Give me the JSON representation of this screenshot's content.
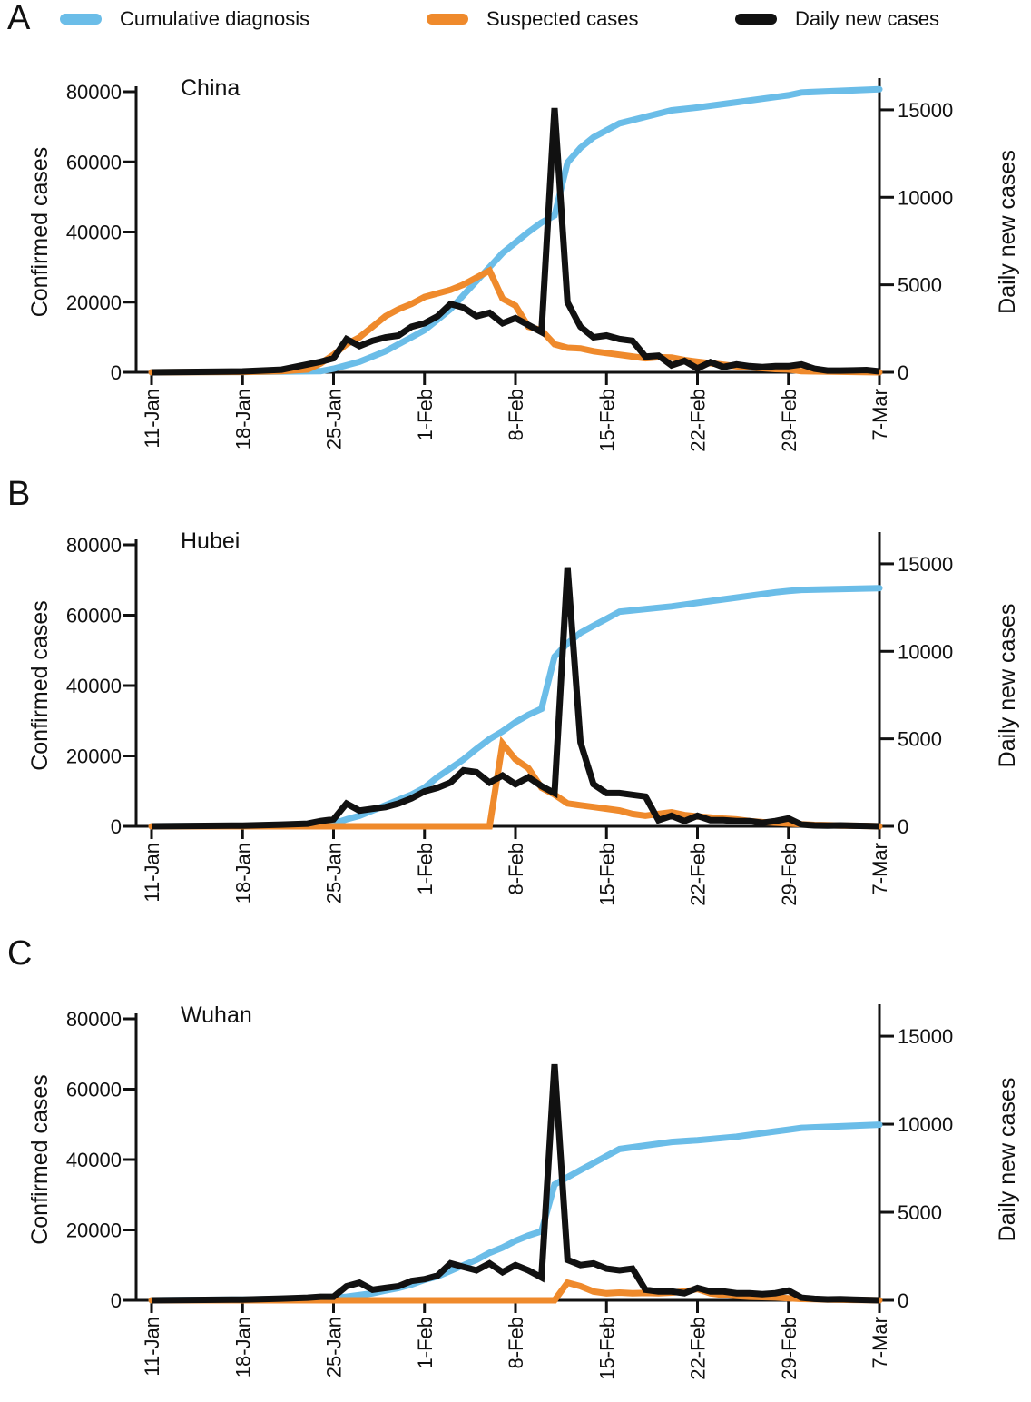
{
  "legend": [
    {
      "label": "Cumulative diagnosis",
      "color": "#6bbde8"
    },
    {
      "label": "Suspected cases",
      "color": "#ef8a2c"
    },
    {
      "label": "Daily new cases",
      "color": "#111111"
    }
  ],
  "x_ticks": [
    "11-Jan",
    "18-Jan",
    "25-Jan",
    "1-Feb",
    "8-Feb",
    "15-Feb",
    "22-Feb",
    "29-Feb",
    "7-Mar"
  ],
  "chart_data": [
    {
      "type": "line",
      "panel": "A",
      "title": "China",
      "ylabel": "Confirmed cases",
      "y2label": "Daily new cases",
      "ylim": [
        0,
        80000
      ],
      "y_ticks": [
        "0",
        "20000",
        "40000",
        "60000",
        "80000"
      ],
      "y2lim": [
        0,
        16500
      ],
      "y2_ticks": [
        "0",
        "5000",
        "10000",
        "15000"
      ],
      "x_start": "11-Jan",
      "x_end": "7-Mar",
      "series": [
        {
          "name": "Cumulative diagnosis",
          "axis": "left",
          "color": "#6bbde8",
          "x": [
            0,
            7,
            13,
            14,
            15,
            16,
            17,
            18,
            19,
            20,
            21,
            22,
            23,
            24,
            25,
            26,
            27,
            28,
            29,
            30,
            31,
            32,
            33,
            34,
            35,
            36,
            40,
            42,
            45,
            48,
            49,
            50,
            56
          ],
          "y": [
            0,
            100,
            300,
            1000,
            2000,
            3000,
            4500,
            6000,
            8000,
            10000,
            12000,
            15000,
            18000,
            22000,
            26000,
            30000,
            34000,
            37000,
            40000,
            42700,
            44700,
            59800,
            64000,
            67000,
            69000,
            71000,
            74700,
            75500,
            77000,
            78500,
            79000,
            79800,
            80700
          ]
        },
        {
          "name": "Suspected cases",
          "axis": "left",
          "color": "#ef8a2c",
          "x": [
            0,
            7,
            10,
            12,
            13,
            14,
            15,
            16,
            17,
            18,
            19,
            20,
            21,
            22,
            23,
            24,
            25,
            26,
            27,
            28,
            29,
            30,
            31,
            32,
            33,
            34,
            35,
            36,
            37,
            38,
            39,
            40,
            41,
            42,
            45,
            48,
            49,
            50,
            56
          ],
          "y": [
            0,
            100,
            300,
            800,
            2500,
            5000,
            8000,
            10000,
            13000,
            16000,
            18000,
            19500,
            21500,
            22500,
            23500,
            25000,
            27000,
            29000,
            21000,
            19000,
            13000,
            12000,
            8000,
            7000,
            6800,
            6000,
            5500,
            5000,
            4500,
            4000,
            4300,
            4200,
            3500,
            3000,
            1700,
            900,
            800,
            300,
            0
          ]
        },
        {
          "name": "Daily new cases",
          "axis": "right",
          "color": "#111111",
          "x": [
            0,
            7,
            10,
            12,
            13,
            14,
            15,
            16,
            17,
            18,
            19,
            20,
            21,
            22,
            23,
            24,
            25,
            26,
            27,
            28,
            29,
            30,
            31,
            32,
            33,
            34,
            35,
            36,
            37,
            38,
            39,
            40,
            41,
            42,
            43,
            44,
            45,
            46,
            47,
            48,
            49,
            50,
            51,
            52,
            53,
            54,
            55,
            56
          ],
          "y": [
            0,
            50,
            150,
            450,
            600,
            800,
            1900,
            1500,
            1800,
            2000,
            2100,
            2600,
            2800,
            3200,
            3900,
            3700,
            3200,
            3400,
            2800,
            3100,
            2700,
            2300,
            15100,
            4000,
            2600,
            2000,
            2100,
            1900,
            1800,
            900,
            950,
            400,
            650,
            220,
            580,
            300,
            450,
            350,
            300,
            350,
            350,
            450,
            200,
            100,
            100,
            110,
            130,
            50
          ]
        }
      ]
    },
    {
      "type": "line",
      "panel": "B",
      "title": "Hubei",
      "ylabel": "Confirmed cases",
      "y2label": "Daily new cases",
      "ylim": [
        0,
        80000
      ],
      "y_ticks": [
        "0",
        "20000",
        "40000",
        "60000",
        "80000"
      ],
      "y2lim": [
        0,
        16500
      ],
      "y2_ticks": [
        "0",
        "5000",
        "10000",
        "15000"
      ],
      "x_start": "11-Jan",
      "x_end": "7-Mar",
      "series": [
        {
          "name": "Cumulative diagnosis",
          "axis": "left",
          "color": "#6bbde8",
          "x": [
            0,
            7,
            14,
            15,
            16,
            17,
            18,
            19,
            20,
            21,
            22,
            23,
            24,
            25,
            26,
            27,
            28,
            29,
            30,
            31,
            32,
            33,
            34,
            35,
            36,
            40,
            42,
            45,
            48,
            49,
            50,
            56
          ],
          "y": [
            0,
            100,
            800,
            2000,
            3000,
            4500,
            6000,
            7500,
            9000,
            11000,
            14000,
            16500,
            19000,
            22000,
            24800,
            27000,
            29600,
            31700,
            33400,
            48200,
            52000,
            55000,
            57000,
            59000,
            61000,
            62500,
            63500,
            65000,
            66500,
            66900,
            67200,
            67700
          ]
        },
        {
          "name": "Suspected cases",
          "axis": "left",
          "color": "#ef8a2c",
          "x": [
            0,
            26,
            27,
            28,
            29,
            30,
            31,
            32,
            33,
            34,
            35,
            36,
            37,
            38,
            39,
            40,
            41,
            42,
            43,
            44,
            45,
            46,
            47,
            48,
            49,
            50,
            51,
            52,
            53,
            54,
            55,
            56
          ],
          "y": [
            0,
            0,
            23500,
            19000,
            16500,
            11000,
            9000,
            6500,
            6000,
            5500,
            5000,
            4500,
            3500,
            3000,
            3500,
            4000,
            3200,
            2800,
            2500,
            2200,
            2000,
            1500,
            1200,
            1000,
            800,
            600,
            400,
            300,
            200,
            150,
            100,
            0
          ]
        },
        {
          "name": "Daily new cases",
          "axis": "right",
          "color": "#111111",
          "x": [
            0,
            7,
            10,
            12,
            13,
            14,
            15,
            16,
            17,
            18,
            19,
            20,
            21,
            22,
            23,
            24,
            25,
            26,
            27,
            28,
            29,
            30,
            31,
            32,
            33,
            34,
            35,
            36,
            37,
            38,
            39,
            40,
            41,
            42,
            43,
            44,
            45,
            46,
            47,
            48,
            49,
            50,
            51,
            52,
            53,
            54,
            55,
            56
          ],
          "y": [
            0,
            40,
            100,
            150,
            300,
            400,
            1300,
            900,
            1000,
            1100,
            1300,
            1600,
            2000,
            2200,
            2500,
            3200,
            3100,
            2500,
            2900,
            2400,
            2800,
            2300,
            1900,
            14800,
            4800,
            2400,
            1900,
            1900,
            1800,
            1700,
            350,
            600,
            300,
            600,
            350,
            350,
            300,
            300,
            200,
            300,
            450,
            100,
            50,
            40,
            50,
            30,
            20,
            0
          ]
        }
      ]
    },
    {
      "type": "line",
      "panel": "C",
      "title": "Wuhan",
      "ylabel": "Confirmed cases",
      "y2label": "Daily new cases",
      "ylim": [
        0,
        80000
      ],
      "y_ticks": [
        "0",
        "20000",
        "40000",
        "60000",
        "80000"
      ],
      "y2lim": [
        0,
        16500
      ],
      "y2_ticks": [
        "0",
        "5000",
        "10000",
        "15000"
      ],
      "x_start": "11-Jan",
      "x_end": "7-Mar",
      "series": [
        {
          "name": "Cumulative diagnosis",
          "axis": "left",
          "color": "#6bbde8",
          "x": [
            0,
            7,
            14,
            15,
            16,
            17,
            18,
            19,
            20,
            21,
            22,
            23,
            24,
            25,
            26,
            27,
            28,
            29,
            30,
            31,
            32,
            33,
            34,
            35,
            36,
            40,
            42,
            45,
            48,
            49,
            50,
            56
          ],
          "y": [
            0,
            200,
            700,
            1000,
            1500,
            2000,
            2800,
            3500,
            4500,
            5800,
            6800,
            8400,
            10000,
            11500,
            13500,
            15000,
            16900,
            18400,
            19600,
            32900,
            35000,
            37000,
            39000,
            41000,
            43000,
            45000,
            45500,
            46500,
            48000,
            48500,
            49000,
            49900
          ]
        },
        {
          "name": "Suspected cases",
          "axis": "left",
          "color": "#ef8a2c",
          "x": [
            0,
            31,
            32,
            33,
            34,
            35,
            36,
            37,
            38,
            39,
            40,
            41,
            42,
            43,
            44,
            45,
            46,
            47,
            48,
            49,
            50,
            51,
            52,
            53,
            54,
            55,
            56
          ],
          "y": [
            0,
            0,
            5000,
            4000,
            2500,
            2000,
            2200,
            2000,
            2100,
            2000,
            2200,
            2500,
            3200,
            2000,
            1500,
            1200,
            1000,
            900,
            800,
            600,
            400,
            300,
            200,
            150,
            100,
            50,
            0
          ]
        },
        {
          "name": "Daily new cases",
          "axis": "right",
          "color": "#111111",
          "x": [
            0,
            7,
            10,
            12,
            13,
            14,
            15,
            16,
            17,
            18,
            19,
            20,
            21,
            22,
            23,
            24,
            25,
            26,
            27,
            28,
            29,
            30,
            31,
            32,
            33,
            34,
            35,
            36,
            37,
            38,
            39,
            40,
            41,
            42,
            43,
            44,
            45,
            46,
            47,
            48,
            49,
            50,
            51,
            52,
            53,
            54,
            55,
            56
          ],
          "y": [
            0,
            40,
            100,
            150,
            200,
            200,
            800,
            1000,
            600,
            700,
            800,
            1100,
            1200,
            1400,
            2100,
            1900,
            1700,
            2100,
            1600,
            2000,
            1700,
            1300,
            13400,
            2300,
            2000,
            2100,
            1800,
            1700,
            1800,
            600,
            500,
            500,
            400,
            700,
            500,
            500,
            400,
            400,
            350,
            400,
            550,
            150,
            80,
            50,
            60,
            40,
            20,
            0
          ]
        }
      ]
    }
  ]
}
